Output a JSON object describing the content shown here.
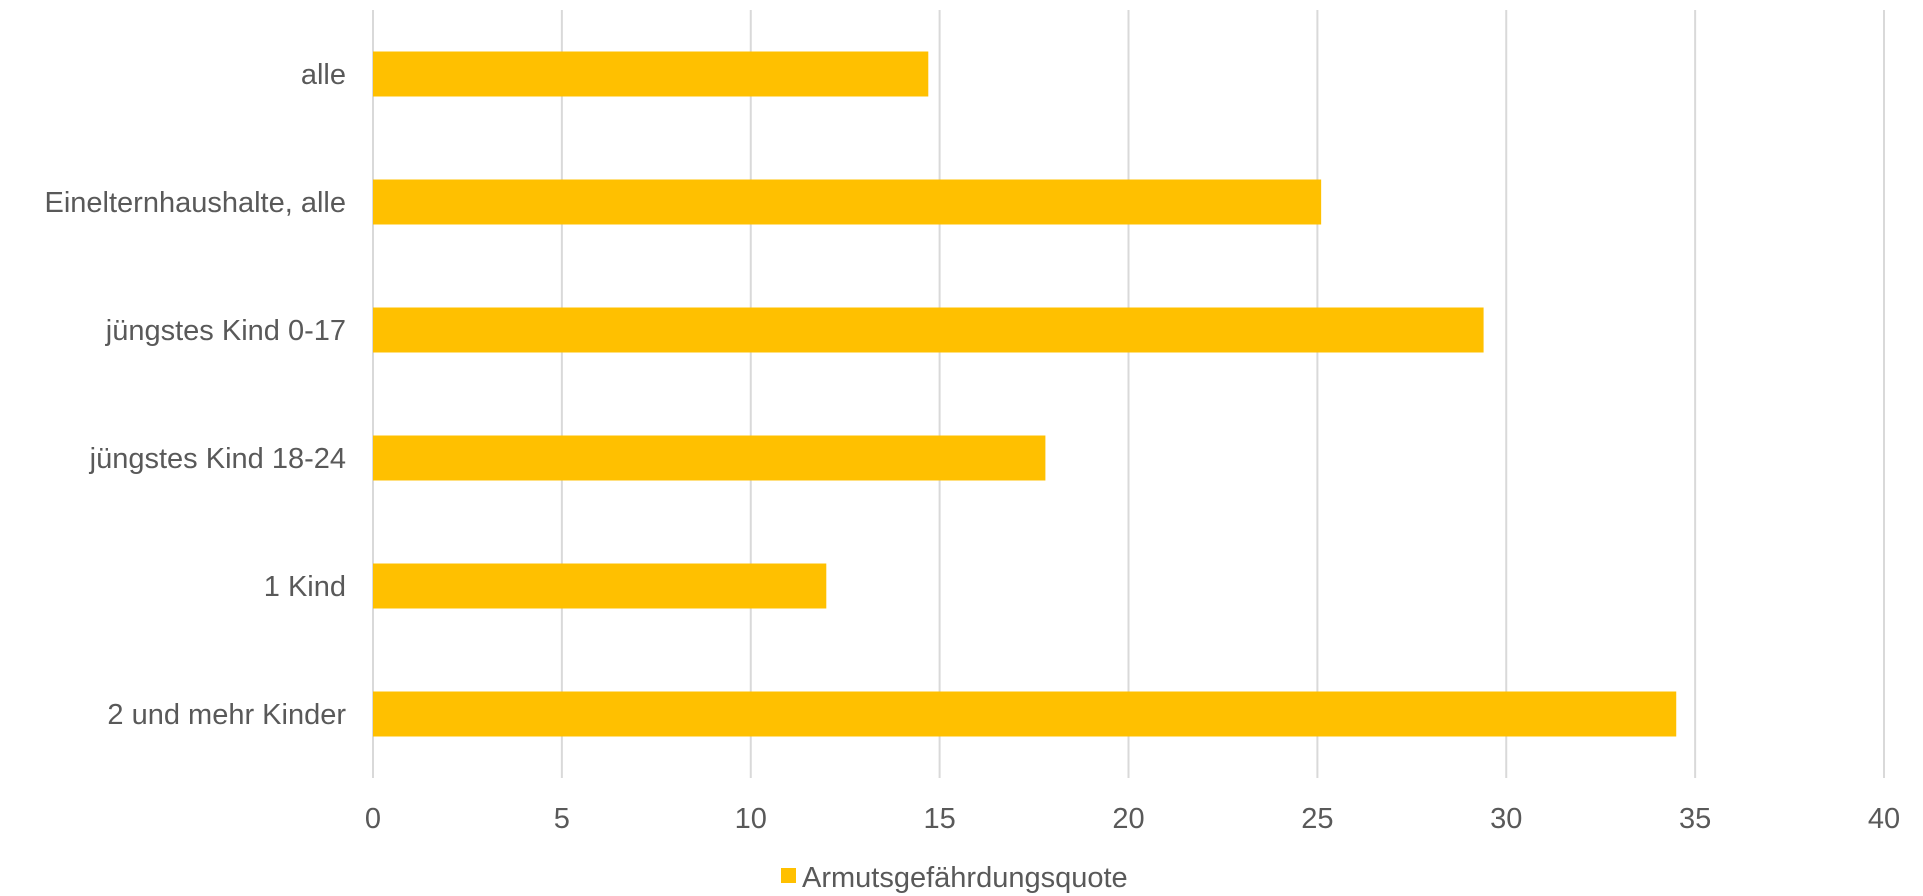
{
  "chart_data": {
    "type": "bar",
    "orientation": "horizontal",
    "categories": [
      "alle",
      "Einelternhaushalte, alle",
      "jüngstes Kind 0-17",
      "jüngstes Kind 18-24",
      "1 Kind",
      "2 und mehr Kinder"
    ],
    "series": [
      {
        "name": "Armutsgefährdungsquote",
        "color": "#ffc000",
        "values": [
          14.7,
          25.1,
          29.4,
          17.8,
          12.0,
          34.5
        ]
      }
    ],
    "xlim": [
      0,
      40
    ],
    "xticks": [
      0,
      5,
      10,
      15,
      20,
      25,
      30,
      35,
      40
    ],
    "grid": "vertical",
    "legend_position": "bottom"
  }
}
